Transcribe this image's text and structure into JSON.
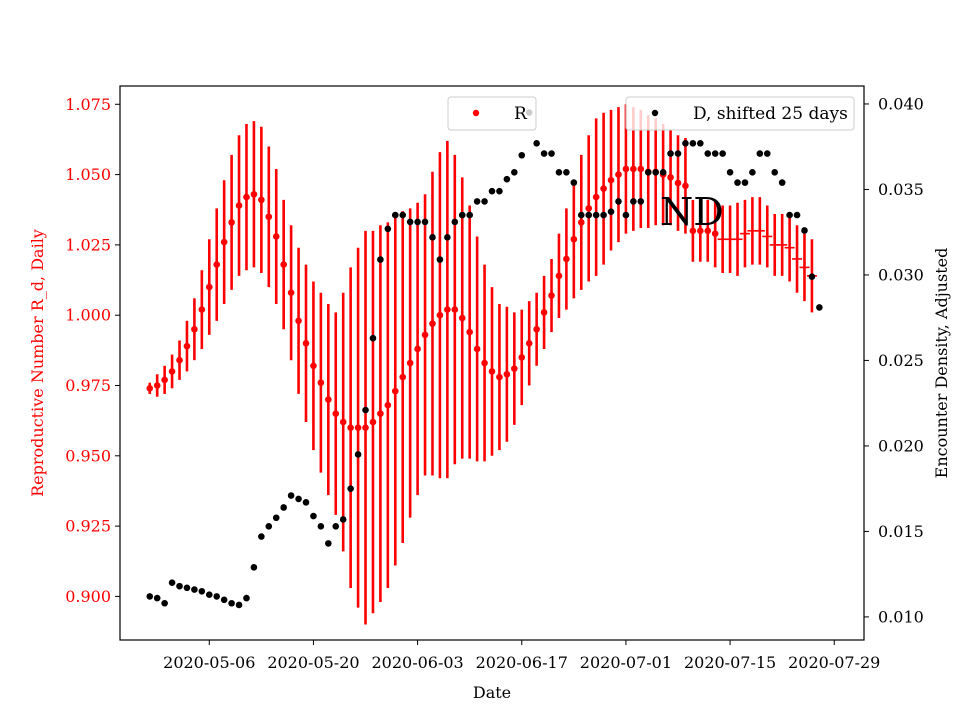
{
  "chart_data": {
    "type": "scatter",
    "xlabel": "Date",
    "ylabel_left": "Reproductive Number R_d, Daily",
    "ylabel_right": "Encounter Density, Adjusted",
    "x_ticks": [
      "2020-05-06",
      "2020-05-20",
      "2020-06-03",
      "2020-06-17",
      "2020-07-01",
      "2020-07-15",
      "2020-07-29"
    ],
    "y_left_ticks": [
      "0.900",
      "0.925",
      "0.950",
      "0.975",
      "1.000",
      "1.025",
      "1.050",
      "1.075"
    ],
    "y_right_ticks": [
      "0.010",
      "0.015",
      "0.020",
      "0.025",
      "0.030",
      "0.035",
      "0.040"
    ],
    "x_range": [
      "2020-04-24",
      "2020-08-02"
    ],
    "y_left_range": [
      0.8845,
      1.0815
    ],
    "y_right_range": [
      0.00865,
      0.04105
    ],
    "annotation": "ND",
    "colors": {
      "R": "#ff0000",
      "D": "#000000"
    },
    "legend_placement": "top-center and top-right (two separate legends)",
    "grid": false,
    "series": [
      {
        "name": "R",
        "axis": "left",
        "start_date": "2020-04-28",
        "marker_until_date": "2020-07-13",
        "values": [
          0.974,
          0.975,
          0.977,
          0.98,
          0.984,
          0.989,
          0.995,
          1.002,
          1.01,
          1.018,
          1.026,
          1.033,
          1.039,
          1.042,
          1.043,
          1.041,
          1.035,
          1.028,
          1.018,
          1.008,
          0.998,
          0.99,
          0.982,
          0.976,
          0.97,
          0.965,
          0.962,
          0.96,
          0.96,
          0.96,
          0.962,
          0.965,
          0.968,
          0.973,
          0.978,
          0.983,
          0.988,
          0.993,
          0.997,
          1.0,
          1.002,
          1.002,
          0.999,
          0.994,
          0.988,
          0.983,
          0.98,
          0.978,
          0.979,
          0.981,
          0.985,
          0.99,
          0.995,
          1.001,
          1.007,
          1.014,
          1.02,
          1.027,
          1.033,
          1.038,
          1.042,
          1.045,
          1.048,
          1.05,
          1.052,
          1.052,
          1.052,
          1.051,
          1.051,
          1.05,
          1.049,
          1.047,
          1.046,
          1.03,
          1.03,
          1.03,
          1.029,
          1.027,
          1.027,
          1.027,
          1.029,
          1.03,
          1.03,
          1.028,
          1.025,
          1.025,
          1.024,
          1.02,
          1.017,
          1.014
        ],
        "errors": [
          0.002,
          0.004,
          0.005,
          0.006,
          0.007,
          0.009,
          0.011,
          0.014,
          0.017,
          0.02,
          0.022,
          0.024,
          0.025,
          0.026,
          0.026,
          0.026,
          0.025,
          0.024,
          0.023,
          0.024,
          0.026,
          0.028,
          0.03,
          0.032,
          0.034,
          0.036,
          0.046,
          0.057,
          0.064,
          0.07,
          0.068,
          0.067,
          0.065,
          0.062,
          0.059,
          0.055,
          0.052,
          0.05,
          0.054,
          0.058,
          0.06,
          0.055,
          0.05,
          0.045,
          0.04,
          0.035,
          0.03,
          0.026,
          0.024,
          0.02,
          0.017,
          0.015,
          0.013,
          0.013,
          0.013,
          0.015,
          0.018,
          0.021,
          0.024,
          0.026,
          0.028,
          0.027,
          0.025,
          0.024,
          0.023,
          0.022,
          0.021,
          0.02,
          0.019,
          0.018,
          0.017,
          0.017,
          0.017,
          0.011,
          0.011,
          0.011,
          0.012,
          0.012,
          0.012,
          0.013,
          0.012,
          0.012,
          0.012,
          0.011,
          0.011,
          0.011,
          0.012,
          0.012,
          0.012,
          0.013
        ]
      },
      {
        "name": "D, shifted 25 days",
        "axis": "right",
        "start_date": "2020-04-28",
        "values": [
          0.0112,
          0.0111,
          0.0108,
          0.012,
          0.0118,
          0.0117,
          0.0116,
          0.0115,
          0.0113,
          0.0112,
          0.011,
          0.0108,
          0.0107,
          0.0111,
          0.0129,
          0.0147,
          0.0153,
          0.0158,
          0.0164,
          0.0171,
          0.0169,
          0.0167,
          0.0159,
          0.0153,
          0.0143,
          0.0153,
          0.0157,
          0.0175,
          0.0195,
          0.0221,
          0.0263,
          0.0309,
          0.0327,
          0.0335,
          0.0335,
          0.0331,
          0.0331,
          0.0331,
          0.0322,
          0.0309,
          0.0322,
          0.0331,
          0.0335,
          0.0335,
          0.0343,
          0.0343,
          0.0349,
          0.0349,
          0.0356,
          0.036,
          0.037,
          0.0395,
          0.0377,
          0.0371,
          0.0371,
          0.036,
          0.036,
          0.0354,
          0.0335,
          0.0335,
          0.0335,
          0.0335,
          0.0337,
          0.0343,
          0.0335,
          0.0343,
          0.0343,
          0.036,
          0.036,
          0.036,
          0.0371,
          0.0371,
          0.0377,
          0.0377,
          0.0377,
          0.0371,
          0.0371,
          0.0371,
          0.036,
          0.0354,
          0.0354,
          0.036,
          0.0371,
          0.0371,
          0.036,
          0.0354,
          0.0335,
          0.0335,
          0.0326,
          0.0299,
          0.0281
        ]
      }
    ]
  }
}
